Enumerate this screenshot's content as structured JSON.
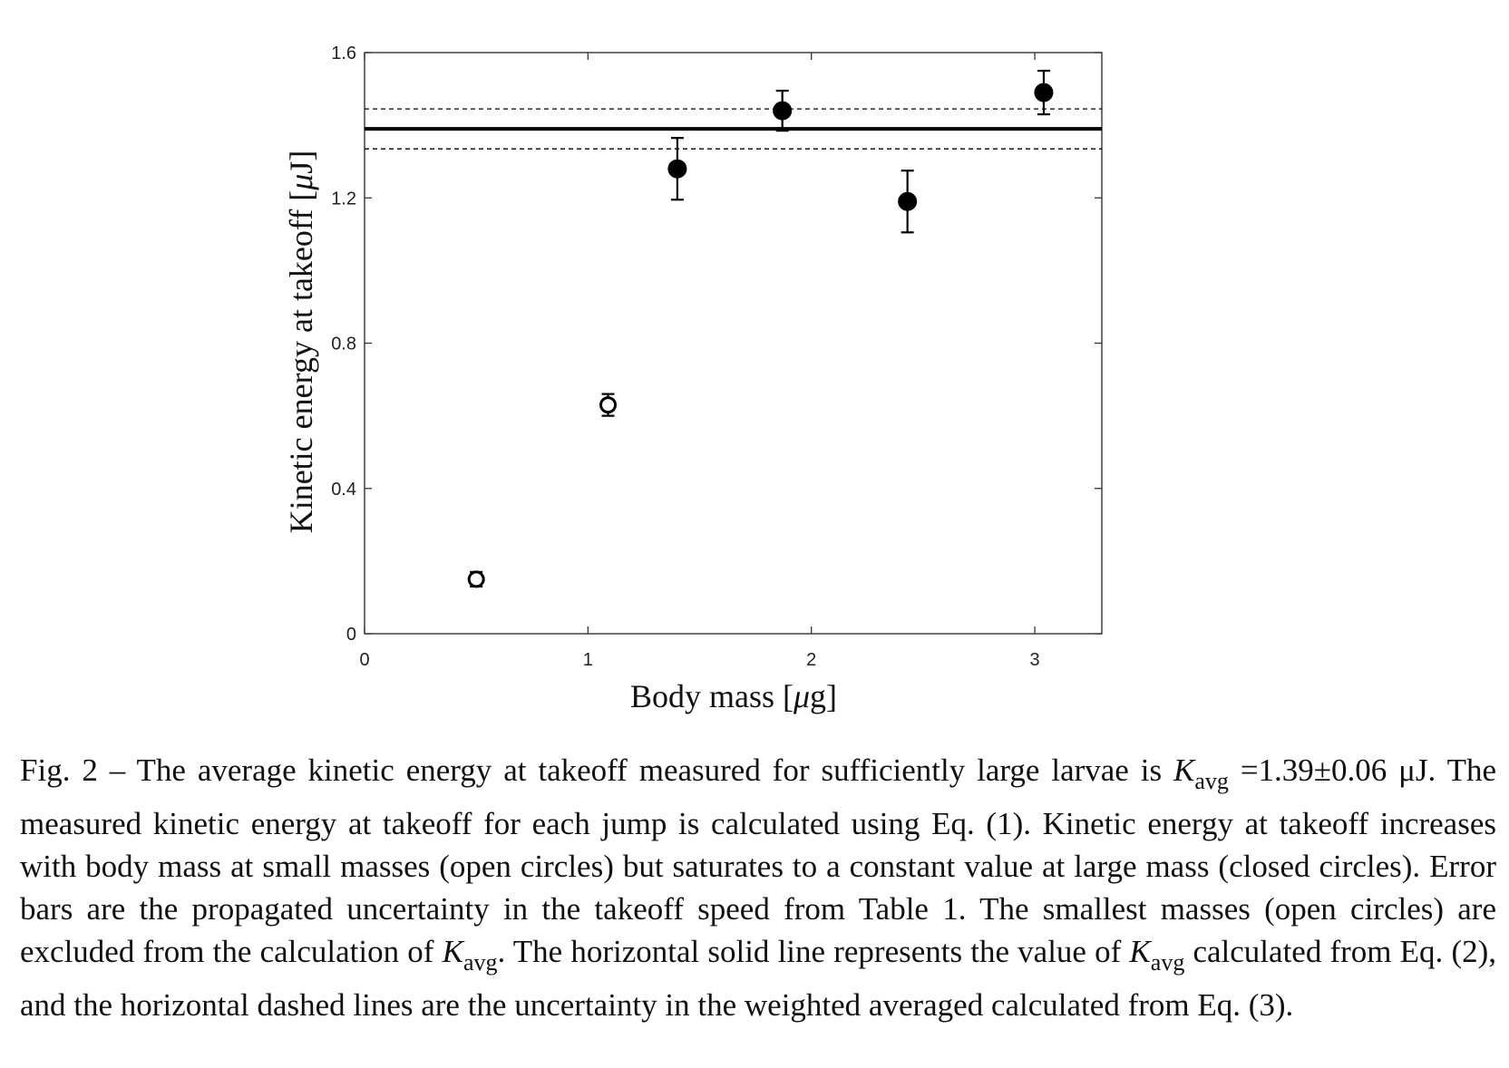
{
  "chart_data": {
    "type": "scatter",
    "xlabel_parts": [
      "Body mass [",
      "μ",
      "g]"
    ],
    "ylabel_parts": [
      "Kinetic energy at takeoff [",
      "μ",
      "J]"
    ],
    "xlim": [
      0,
      3.3
    ],
    "ylim": [
      0,
      1.6
    ],
    "xticks": [
      0,
      1,
      2,
      3
    ],
    "yticks": [
      0,
      0.4,
      0.8,
      1.2,
      1.6
    ],
    "xtick_labels": [
      "0",
      "1",
      "2",
      "3"
    ],
    "ytick_labels": [
      "0",
      "0.4",
      "0.8",
      "1.2",
      "1.6"
    ],
    "grid": false,
    "series": [
      {
        "marker": "open-circle",
        "points": [
          {
            "x": 0.5,
            "y": 0.15,
            "err": 0.02
          },
          {
            "x": 1.09,
            "y": 0.63,
            "err": 0.03
          }
        ]
      },
      {
        "marker": "filled-circle",
        "points": [
          {
            "x": 1.4,
            "y": 1.28,
            "err": 0.085
          },
          {
            "x": 1.87,
            "y": 1.44,
            "err": 0.055
          },
          {
            "x": 2.43,
            "y": 1.19,
            "err": 0.085
          },
          {
            "x": 3.04,
            "y": 1.49,
            "err": 0.06
          }
        ]
      }
    ],
    "reference_lines": [
      {
        "y": 1.39,
        "style": "solid"
      },
      {
        "y": 1.445,
        "style": "dashed"
      },
      {
        "y": 1.335,
        "style": "dashed"
      }
    ],
    "colors": {
      "marks": "#000000",
      "axes": "#333333"
    }
  },
  "caption": {
    "p1": "Fig. 2 – The average kinetic energy at takeoff measured for sufficiently large larvae is ",
    "k1": "K",
    "sub1": "avg",
    "p2": " =1.39±0.06 μJ. The measured kinetic energy at takeoff for each jump is calculated using Eq. (1). Kinetic energy at takeoff increases with body mass at small masses (open circles) but saturates to a constant value at large mass (closed circles). Error bars are the propagated uncertainty in the takeoff speed from Table 1. The smallest masses (open circles) are excluded from the calculation of ",
    "k2": "K",
    "sub2": "avg",
    "p3": ". The horizontal solid line represents the value of ",
    "k3": "K",
    "sub3": "avg",
    "p4": " calculated from Eq. (2), and the horizontal dashed lines are the uncertainty in the weighted averaged calculated from Eq. (3)."
  }
}
